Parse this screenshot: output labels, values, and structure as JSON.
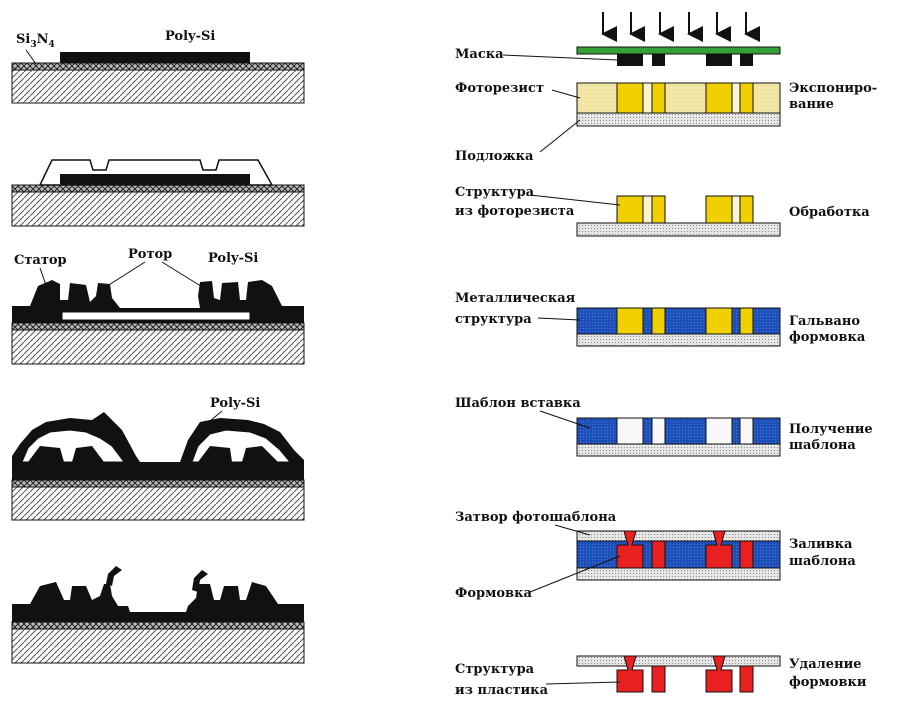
{
  "left_panel": {
    "stage1": {
      "si3n4": "Si",
      "si3n4_sub1": "3",
      "si3n4_mid": "N",
      "si3n4_sub2": "4",
      "poly": "Poly-Si"
    },
    "stage3": {
      "stator": "Статор",
      "rotor": "Ротор",
      "poly": "Poly-Si"
    },
    "stage4": {
      "poly": "Poly-Si"
    }
  },
  "right_panel": {
    "step1": {
      "mask": "Маска",
      "photoresist": "Фоторезист",
      "substrate": "Подложка",
      "action_line1": "Экспониро-",
      "action_line2": "вание"
    },
    "step2": {
      "label_line1": "Структура",
      "label_line2": "из фоторезиста",
      "action": "Обработка"
    },
    "step3": {
      "label_line1": "Металлическая",
      "label_line2": "структура",
      "action_line1": "Гальвано",
      "action_line2": "формовка"
    },
    "step4": {
      "label": "Шаблон вставка",
      "action_line1": "Получение",
      "action_line2": "шаблона"
    },
    "step5": {
      "label_top": "Затвор фотошаблона",
      "label_bottom": "Формовка",
      "action_line1": "Заливка",
      "action_line2": "шаблона"
    },
    "step6": {
      "label_line1": "Структура",
      "label_line2": "из пластика",
      "action_line1": "Удаление",
      "action_line2": "формовки"
    }
  },
  "colors": {
    "photoresist": "#f0e68c",
    "resist_structure": "#f0d000",
    "metal": "#1c4fb8",
    "plastic": "#e82020",
    "mask": "#35a035",
    "substrate": "#e6e6e6"
  }
}
